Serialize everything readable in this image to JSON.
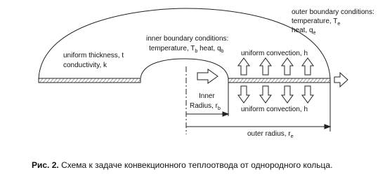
{
  "labels": {
    "outer_bc": {
      "title": "outer boundary conditions:",
      "temp": [
        "temperature, T",
        "e"
      ],
      "heat": [
        "heat, q",
        "e"
      ]
    },
    "inner_bc": {
      "title": "inner boundary conditions:",
      "line2": [
        "temperature, T",
        "b",
        " heat, q",
        "b"
      ]
    },
    "material": [
      "uniform thickness, t",
      "conductivity, k"
    ],
    "convection_top": "uniform convection, h",
    "convection_bottom": "uniform convection, h",
    "inner_radius": {
      "line1": "Inner",
      "line2": [
        "Radius, r",
        "b"
      ]
    },
    "outer_radius": [
      "outer radius, r",
      "e"
    ]
  },
  "caption": {
    "label": "Рис. 2.",
    "text": " Схема к задаче конвекционного теплоотвода от однородного кольца."
  }
}
